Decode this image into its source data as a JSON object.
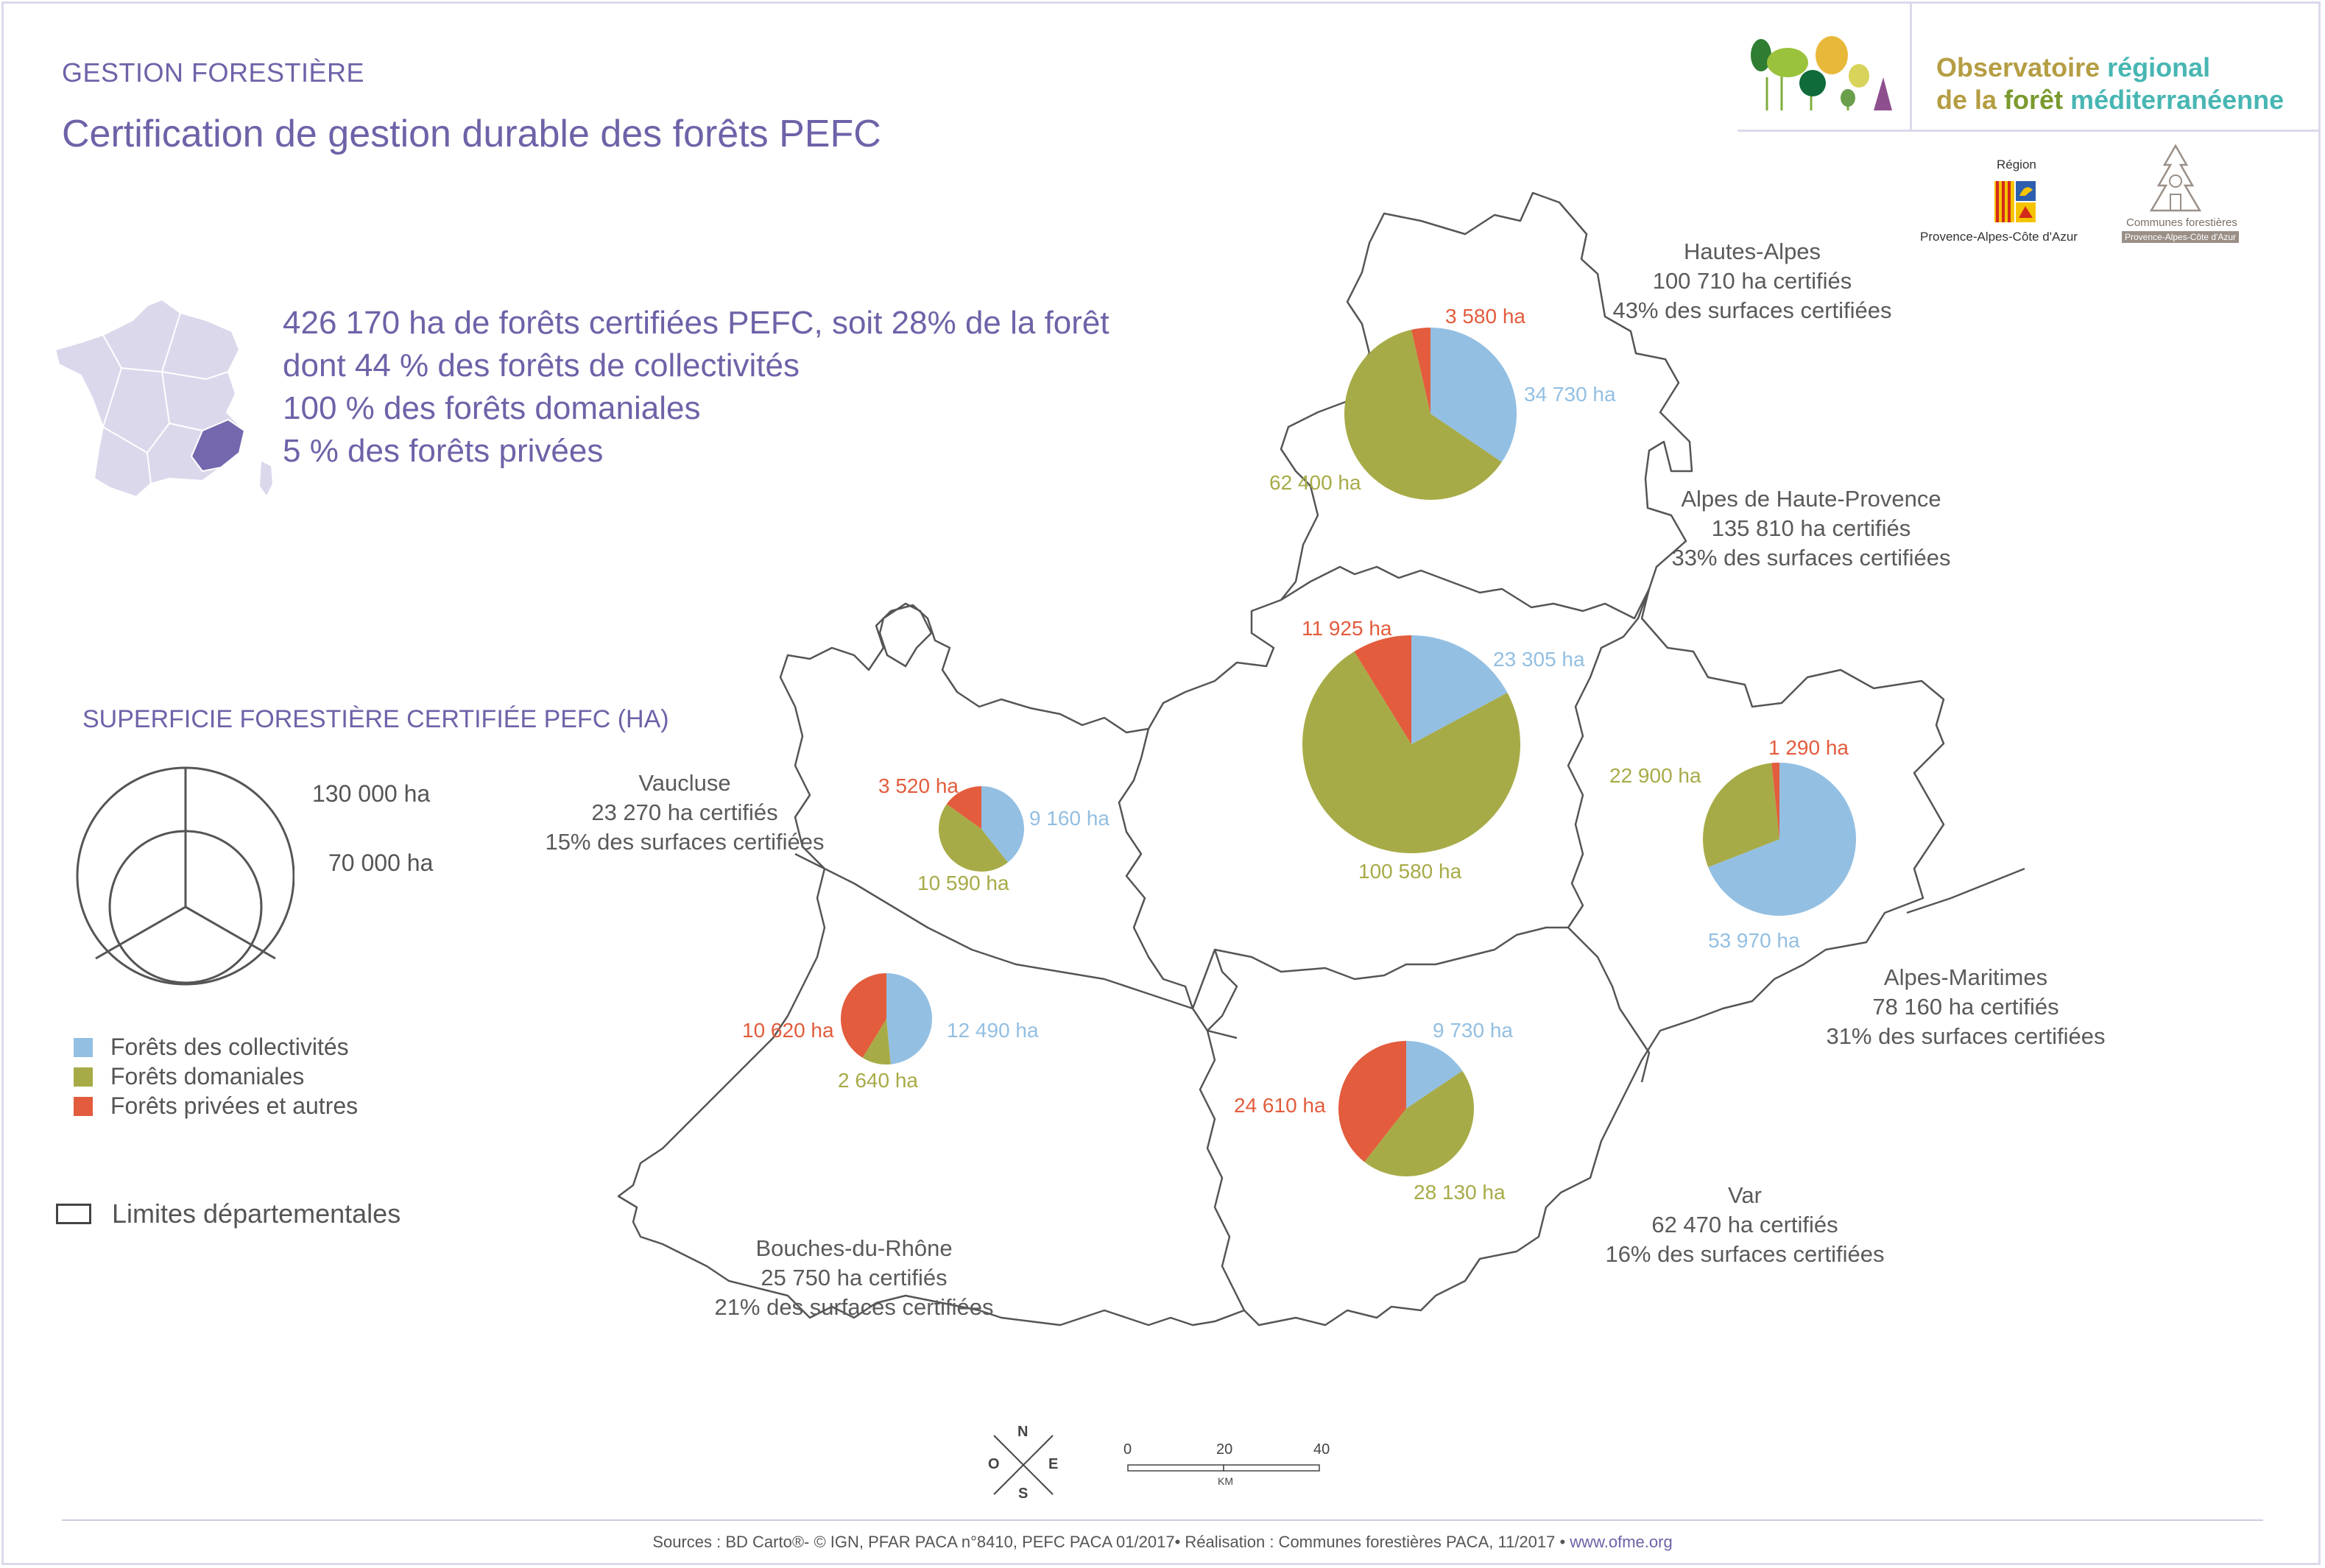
{
  "header": {
    "section": "GESTION FORESTIÈRE",
    "title": "Certification de gestion durable des forêts PEFC"
  },
  "summary": {
    "line1": "426 170 ha de forêts certifiées PEFC, soit 28% de la forêt",
    "line2": "dont 44 % des forêts de collectivités",
    "line3": "100 %  des forêts domaniales",
    "line4": "5 % des forêts privées"
  },
  "logo": {
    "line1a": "Observatoire",
    "line1b": "régional",
    "line2a": "de la",
    "line2b": "forêt",
    "line2c": "méditerranéenne"
  },
  "partners": {
    "region_top": "Région",
    "region_bottom": "Provence-Alpes-Côte d'Azur",
    "communes_top": "Communes forestières",
    "communes_bottom": "Provence-Alpes-Côte d'Azur"
  },
  "legend": {
    "title": "SUPERFICIE FORESTIÈRE CERTIFIÉE PEFC (HA)",
    "size_large": "130 000 ha",
    "size_small": "70 000 ha",
    "categories": [
      {
        "label": "Forêts des collectivités",
        "color": "#93bfe2"
      },
      {
        "label": "Forêts domaniales",
        "color": "#a7ab47"
      },
      {
        "label": "Forêts privées et autres",
        "color": "#e25c3d"
      }
    ],
    "limits": "Limites départementales"
  },
  "departments": {
    "hautes_alpes": {
      "name": "Hautes-Alpes",
      "total": "100 710 ha certifiés",
      "share": "43% des surfaces certifiées",
      "collectivites": "34 730 ha",
      "domaniales": "62 400 ha",
      "privees": "3 580 ha",
      "values": [
        34730,
        62400,
        3580
      ]
    },
    "alpes_haute_provence": {
      "name": "Alpes de Haute-Provence",
      "total": "135 810 ha certifiés",
      "share": "33% des surfaces certifiées",
      "collectivites": "23 305 ha",
      "domaniales": "100 580 ha",
      "privees": "11 925 ha",
      "values": [
        23305,
        100580,
        11925
      ]
    },
    "vaucluse": {
      "name": "Vaucluse",
      "total": "23 270 ha certifiés",
      "share": "15% des surfaces certifiées",
      "collectivites": "9 160 ha",
      "domaniales": "10 590 ha",
      "privees": "3 520 ha",
      "values": [
        9160,
        10590,
        3520
      ]
    },
    "alpes_maritimes": {
      "name": "Alpes-Maritimes",
      "total": "78 160 ha certifiés",
      "share": "31% des surfaces certifiées",
      "collectivites": "53 970 ha",
      "domaniales": "22 900 ha",
      "privees": "1 290 ha",
      "values": [
        53970,
        22900,
        1290
      ]
    },
    "bouches_du_rhone": {
      "name": "Bouches-du-Rhône",
      "total": "25 750 ha certifiés",
      "share": "21% des surfaces certifiées",
      "collectivites": "12 490 ha",
      "domaniales": "2 640 ha",
      "privees": "10 620 ha",
      "values": [
        12490,
        2640,
        10620
      ]
    },
    "var": {
      "name": "Var",
      "total": "62 470 ha certifiés",
      "share": "16% des surfaces certifiées",
      "collectivites": "9 730 ha",
      "domaniales": "28 130 ha",
      "privees": "24 610 ha",
      "values": [
        9730,
        28130,
        24610
      ]
    }
  },
  "compass": {
    "n": "N",
    "s": "S",
    "e": "E",
    "o": "O"
  },
  "scale": {
    "t0": "0",
    "t1": "20",
    "t2": "40",
    "unit": "KM"
  },
  "footer": {
    "text": "Sources : BD Carto®- © IGN, PFAR PACA n°8410,  PEFC PACA 01/2017• Réalisation : Communes forestières PACA, 11/2017 • ",
    "link": "www.ofme.org"
  }
}
